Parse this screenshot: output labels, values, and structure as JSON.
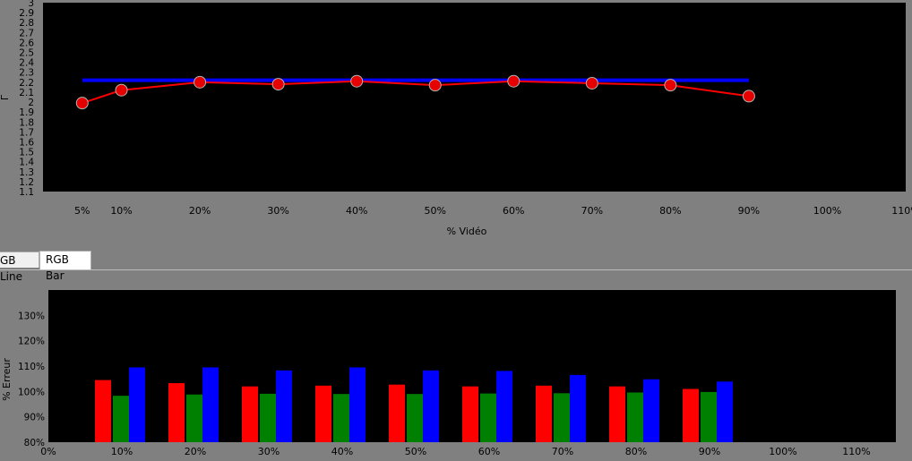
{
  "tabs": [
    {
      "label": "GB Line"
    },
    {
      "label": "RGB Bar"
    }
  ],
  "chart_data": [
    {
      "type": "line",
      "title": "",
      "xlabel": "% Vidéo",
      "ylabel": "Γ",
      "x_tick_labels": [
        "5%",
        "10%",
        "20%",
        "30%",
        "40%",
        "50%",
        "60%",
        "70%",
        "80%",
        "90%",
        "100%",
        "110%"
      ],
      "x_ticks": [
        5,
        10,
        20,
        30,
        40,
        50,
        60,
        70,
        80,
        90,
        100,
        110
      ],
      "y_tick_labels": [
        "1.1",
        "1.2",
        "1.3",
        "1.4",
        "1.5",
        "1.6",
        "1.7",
        "1.8",
        "1.9",
        "2",
        "2.1",
        "2.2",
        "2.3",
        "2.4",
        "2.5",
        "2.6",
        "2.7",
        "2.8",
        "2.9",
        "3"
      ],
      "y_ticks": [
        1.1,
        1.2,
        1.3,
        1.4,
        1.5,
        1.6,
        1.7,
        1.8,
        1.9,
        2.0,
        2.1,
        2.2,
        2.3,
        2.4,
        2.5,
        2.6,
        2.7,
        2.8,
        2.9,
        3.0
      ],
      "xlim": [
        0,
        110
      ],
      "ylim": [
        1.1,
        3.0
      ],
      "grid": false,
      "colors": {
        "background": "#000000",
        "target": "#0000ff",
        "measured": "#ff0000",
        "marker": "#e60000"
      },
      "series": [
        {
          "x": [
            5,
            90
          ],
          "y": [
            2.22,
            2.22
          ]
        },
        {
          "x": [
            5,
            10,
            20,
            30,
            40,
            50,
            60,
            70,
            80,
            90
          ],
          "y": [
            1.99,
            2.12,
            2.2,
            2.18,
            2.21,
            2.17,
            2.21,
            2.19,
            2.17,
            2.06
          ]
        }
      ]
    },
    {
      "type": "bar",
      "title": "",
      "xlabel": "",
      "ylabel": "% Erreur",
      "categories": [
        "10%",
        "20%",
        "30%",
        "40%",
        "50%",
        "60%",
        "70%",
        "80%",
        "90%"
      ],
      "x_tick_labels": [
        "0%",
        "10%",
        "20%",
        "30%",
        "40%",
        "50%",
        "60%",
        "70%",
        "80%",
        "90%",
        "100%",
        "110%"
      ],
      "y_tick_labels": [
        "80%",
        "90%",
        "100%",
        "110%",
        "120%",
        "130%"
      ],
      "y_ticks": [
        80,
        90,
        100,
        110,
        120,
        130
      ],
      "ylim": [
        80,
        140
      ],
      "grid": false,
      "colors": {
        "background": "#000000",
        "red": "#ff0000",
        "green": "#008000",
        "blue": "#0000ff"
      },
      "series": [
        {
          "values": [
            104.5,
            103.3,
            102.0,
            102.3,
            102.7,
            102.0,
            102.3,
            102.0,
            101.0
          ]
        },
        {
          "values": [
            98.3,
            98.8,
            99.1,
            99.0,
            99.0,
            99.2,
            99.3,
            99.6,
            99.8
          ]
        },
        {
          "values": [
            109.5,
            109.5,
            108.3,
            109.5,
            108.3,
            108.1,
            106.5,
            104.8,
            103.9
          ]
        }
      ]
    }
  ]
}
